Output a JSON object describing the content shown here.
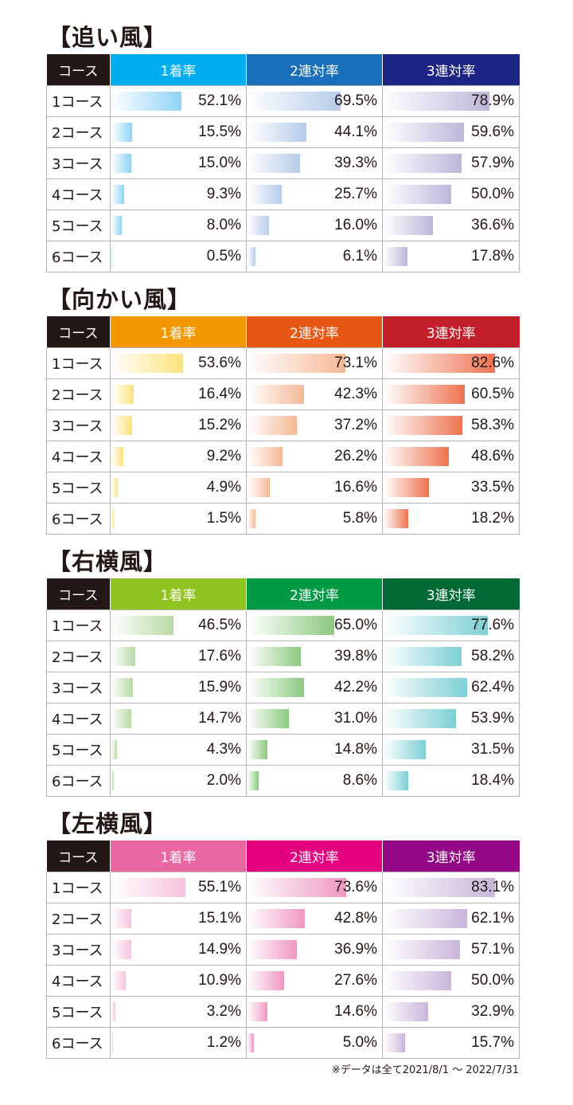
{
  "tables": [
    {
      "title": "【追い風】",
      "header": {
        "course": "コース",
        "c1": "1着率",
        "c2": "2連対率",
        "c3": "3連対率"
      },
      "colors": {
        "c1": {
          "head": "#00aeef",
          "bar": [
            "#ffffff",
            "#8ed3f5"
          ]
        },
        "c2": {
          "head": "#1a6fba",
          "bar": [
            "#ffffff",
            "#b6cbe9"
          ]
        },
        "c3": {
          "head": "#1d2585",
          "bar": [
            "#ffffff",
            "#bcb6da"
          ]
        }
      },
      "rows": [
        {
          "course": "1コース",
          "c1": "52.1%",
          "c2": "69.5%",
          "c3": "78.9%"
        },
        {
          "course": "2コース",
          "c1": "15.5%",
          "c2": "44.1%",
          "c3": "59.6%"
        },
        {
          "course": "3コース",
          "c1": "15.0%",
          "c2": "39.3%",
          "c3": "57.9%"
        },
        {
          "course": "4コース",
          "c1": "9.3%",
          "c2": "25.7%",
          "c3": "50.0%"
        },
        {
          "course": "5コース",
          "c1": "8.0%",
          "c2": "16.0%",
          "c3": "36.6%"
        },
        {
          "course": "6コース",
          "c1": "0.5%",
          "c2": "6.1%",
          "c3": "17.8%"
        }
      ]
    },
    {
      "title": "【向かい風】",
      "header": {
        "course": "コース",
        "c1": "1着率",
        "c2": "2連対率",
        "c3": "3連対率"
      },
      "colors": {
        "c1": {
          "head": "#f39800",
          "bar": [
            "#ffffff",
            "#fbe27a"
          ]
        },
        "c2": {
          "head": "#e85613",
          "bar": [
            "#ffffff",
            "#f5b896"
          ]
        },
        "c3": {
          "head": "#c21f2a",
          "bar": [
            "#ffffff",
            "#ee7350"
          ]
        }
      },
      "rows": [
        {
          "course": "1コース",
          "c1": "53.6%",
          "c2": "73.1%",
          "c3": "82.6%"
        },
        {
          "course": "2コース",
          "c1": "16.4%",
          "c2": "42.3%",
          "c3": "60.5%"
        },
        {
          "course": "3コース",
          "c1": "15.2%",
          "c2": "37.2%",
          "c3": "58.3%"
        },
        {
          "course": "4コース",
          "c1": "9.2%",
          "c2": "26.2%",
          "c3": "48.6%"
        },
        {
          "course": "5コース",
          "c1": "4.9%",
          "c2": "16.6%",
          "c3": "33.5%"
        },
        {
          "course": "6コース",
          "c1": "1.5%",
          "c2": "5.8%",
          "c3": "18.2%"
        }
      ]
    },
    {
      "title": "【右横風】",
      "header": {
        "course": "コース",
        "c1": "1着率",
        "c2": "2連対率",
        "c3": "3連対率"
      },
      "colors": {
        "c1": {
          "head": "#8fc31f",
          "bar": [
            "#ffffff",
            "#b8d9a4"
          ]
        },
        "c2": {
          "head": "#009944",
          "bar": [
            "#ffffff",
            "#8cc97f"
          ]
        },
        "c3": {
          "head": "#006934",
          "bar": [
            "#ffffff",
            "#7ccfd4"
          ]
        }
      },
      "rows": [
        {
          "course": "1コース",
          "c1": "46.5%",
          "c2": "65.0%",
          "c3": "77.6%"
        },
        {
          "course": "2コース",
          "c1": "17.6%",
          "c2": "39.8%",
          "c3": "58.2%"
        },
        {
          "course": "3コース",
          "c1": "15.9%",
          "c2": "42.2%",
          "c3": "62.4%"
        },
        {
          "course": "4コース",
          "c1": "14.7%",
          "c2": "31.0%",
          "c3": "53.9%"
        },
        {
          "course": "5コース",
          "c1": "4.3%",
          "c2": "14.8%",
          "c3": "31.5%"
        },
        {
          "course": "6コース",
          "c1": "2.0%",
          "c2": "8.6%",
          "c3": "18.4%"
        }
      ]
    },
    {
      "title": "【左横風】",
      "header": {
        "course": "コース",
        "c1": "1着率",
        "c2": "2連対率",
        "c3": "3連対率"
      },
      "colors": {
        "c1": {
          "head": "#ea68a2",
          "bar": [
            "#ffffff",
            "#f6c3dc"
          ]
        },
        "c2": {
          "head": "#e4007f",
          "bar": [
            "#ffffff",
            "#ef97c1"
          ]
        },
        "c3": {
          "head": "#920783",
          "bar": [
            "#ffffff",
            "#c9b5d9"
          ]
        }
      },
      "rows": [
        {
          "course": "1コース",
          "c1": "55.1%",
          "c2": "73.6%",
          "c3": "83.1%"
        },
        {
          "course": "2コース",
          "c1": "15.1%",
          "c2": "42.8%",
          "c3": "62.1%"
        },
        {
          "course": "3コース",
          "c1": "14.9%",
          "c2": "36.9%",
          "c3": "57.1%"
        },
        {
          "course": "4コース",
          "c1": "10.9%",
          "c2": "27.6%",
          "c3": "50.0%"
        },
        {
          "course": "5コース",
          "c1": "3.2%",
          "c2": "14.6%",
          "c3": "32.9%"
        },
        {
          "course": "6コース",
          "c1": "1.2%",
          "c2": "5.0%",
          "c3": "15.7%"
        }
      ]
    }
  ],
  "footnote": "※データは全て2021/8/1 〜 2022/7/31",
  "chart_data": [
    {
      "type": "bar",
      "title": "【追い風】",
      "categories": [
        "1コース",
        "2コース",
        "3コース",
        "4コース",
        "5コース",
        "6コース"
      ],
      "series": [
        {
          "name": "1着率",
          "values": [
            52.1,
            15.5,
            15.0,
            9.3,
            8.0,
            0.5
          ]
        },
        {
          "name": "2連対率",
          "values": [
            69.5,
            44.1,
            39.3,
            25.7,
            16.0,
            6.1
          ]
        },
        {
          "name": "3連対率",
          "values": [
            78.9,
            59.6,
            57.9,
            50.0,
            36.6,
            17.8
          ]
        }
      ]
    },
    {
      "type": "bar",
      "title": "【向かい風】",
      "categories": [
        "1コース",
        "2コース",
        "3コース",
        "4コース",
        "5コース",
        "6コース"
      ],
      "series": [
        {
          "name": "1着率",
          "values": [
            53.6,
            16.4,
            15.2,
            9.2,
            4.9,
            1.5
          ]
        },
        {
          "name": "2連対率",
          "values": [
            73.1,
            42.3,
            37.2,
            26.2,
            16.6,
            5.8
          ]
        },
        {
          "name": "3連対率",
          "values": [
            82.6,
            60.5,
            58.3,
            48.6,
            33.5,
            18.2
          ]
        }
      ]
    },
    {
      "type": "bar",
      "title": "【右横風】",
      "categories": [
        "1コース",
        "2コース",
        "3コース",
        "4コース",
        "5コース",
        "6コース"
      ],
      "series": [
        {
          "name": "1着率",
          "values": [
            46.5,
            17.6,
            15.9,
            14.7,
            4.3,
            2.0
          ]
        },
        {
          "name": "2連対率",
          "values": [
            65.0,
            39.8,
            42.2,
            31.0,
            14.8,
            8.6
          ]
        },
        {
          "name": "3連対率",
          "values": [
            77.6,
            58.2,
            62.4,
            53.9,
            31.5,
            18.4
          ]
        }
      ]
    },
    {
      "type": "bar",
      "title": "【左横風】",
      "categories": [
        "1コース",
        "2コース",
        "3コース",
        "4コース",
        "5コース",
        "6コース"
      ],
      "series": [
        {
          "name": "1着率",
          "values": [
            55.1,
            15.1,
            14.9,
            10.9,
            3.2,
            1.2
          ]
        },
        {
          "name": "2連対率",
          "values": [
            73.6,
            42.8,
            36.9,
            27.6,
            14.6,
            5.0
          ]
        },
        {
          "name": "3連対率",
          "values": [
            83.1,
            62.1,
            57.1,
            50.0,
            32.9,
            15.7
          ]
        }
      ]
    }
  ]
}
